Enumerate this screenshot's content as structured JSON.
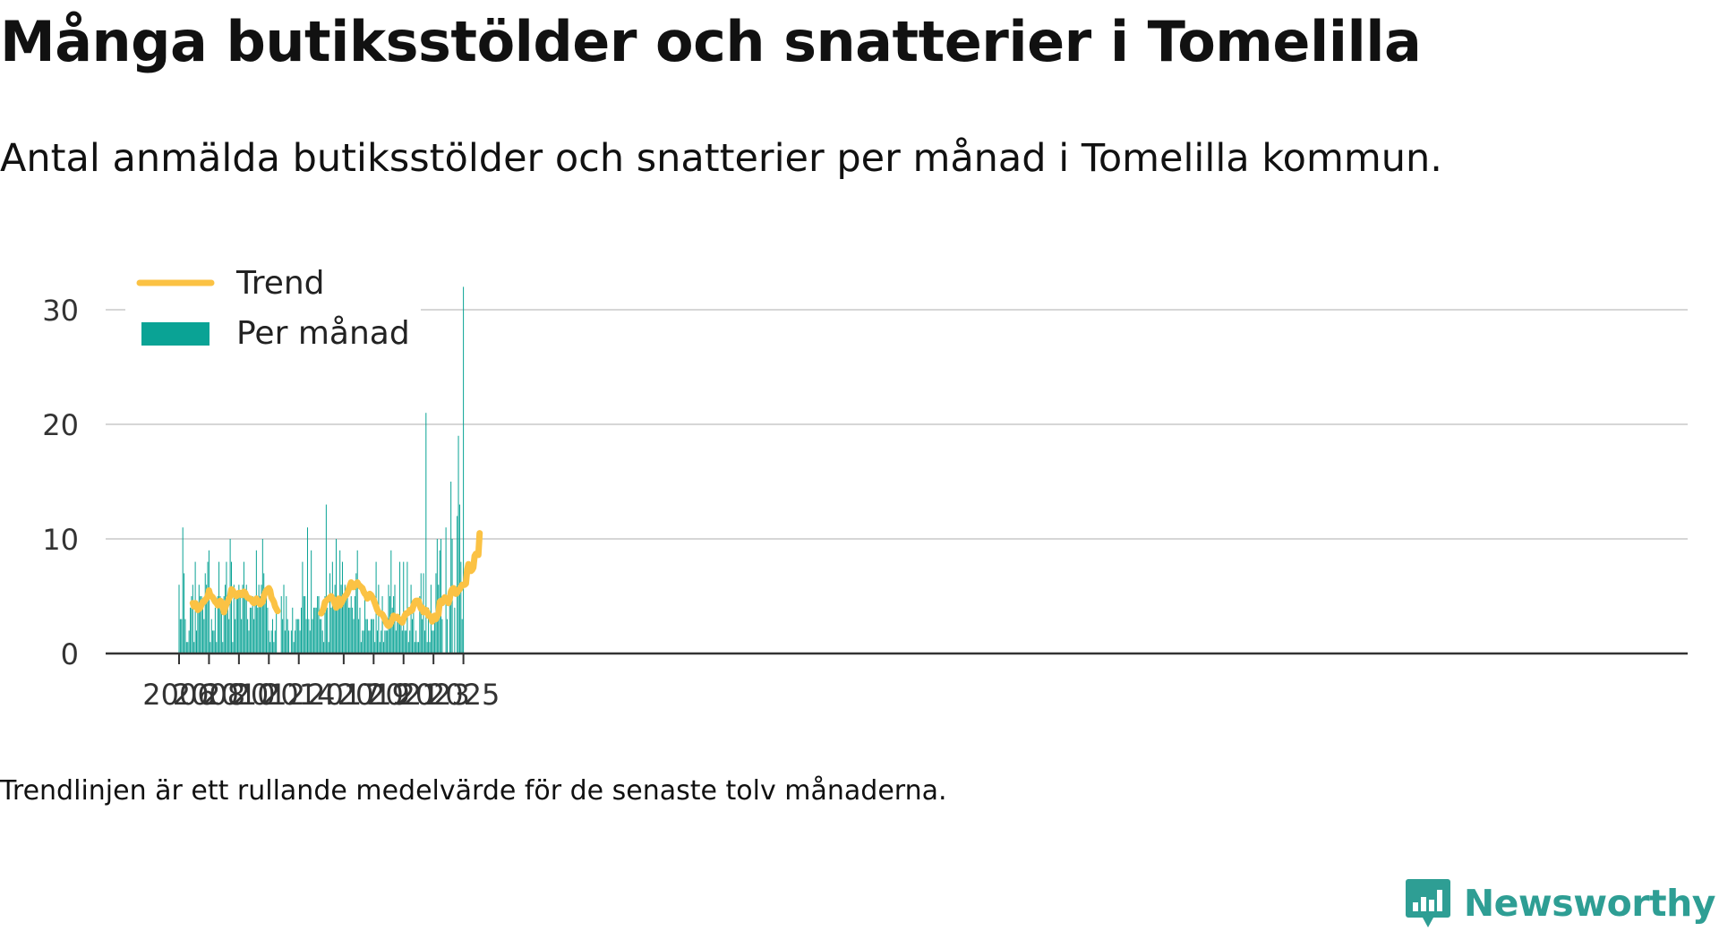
{
  "title": "Många butiksstölder och snatterier i Tomelilla",
  "subtitle": "Antal anmälda butiksstölder och snatterier per månad i Tomelilla kommun.",
  "note": "Trendlinjen är ett rullande medelvärde för de senaste tolv månaderna.",
  "brand": {
    "name": "Newsworthy",
    "icon": "newsworthy-logo-icon",
    "color": "#2e9e94"
  },
  "colors": {
    "bars": "#0aa395",
    "trend": "#fbc244",
    "grid": "#d6d6d6",
    "axis": "#333333"
  },
  "chart_data": {
    "type": "bar",
    "x_axis": "month",
    "start_month": "2006-01",
    "ylim": [
      0,
      32
    ],
    "yticks": [
      0,
      10,
      20,
      30
    ],
    "xticks": [
      "2006",
      "2008",
      "2010",
      "2012",
      "2014",
      "2017",
      "2019",
      "2021",
      "2023",
      "2025"
    ],
    "grid": true,
    "legend": {
      "placement": "top-left",
      "entries": [
        "Trend",
        "Per månad"
      ]
    },
    "series": [
      {
        "name": "Per månad",
        "type": "bar",
        "values": [
          6,
          3,
          3,
          11,
          7,
          3,
          1,
          1,
          2,
          4,
          5,
          6,
          1,
          8,
          2,
          4,
          6,
          5,
          5,
          4,
          3,
          7,
          6,
          8,
          9,
          1,
          3,
          2,
          2,
          4,
          1,
          5,
          8,
          5,
          4,
          1,
          5,
          6,
          8,
          4,
          3,
          10,
          8,
          1,
          6,
          3,
          5,
          5,
          6,
          5,
          3,
          6,
          8,
          5,
          6,
          3,
          2,
          4,
          4,
          5,
          3,
          5,
          9,
          4,
          6,
          5,
          6,
          10,
          7,
          5,
          5,
          4,
          2,
          1,
          2,
          3,
          1,
          2,
          4,
          null,
          null,
          null,
          5,
          3,
          6,
          2,
          5,
          3,
          2,
          null,
          2,
          4,
          1,
          2,
          3,
          3,
          3,
          2,
          4,
          8,
          5,
          5,
          3,
          11,
          3,
          2,
          9,
          3,
          4,
          4,
          4,
          5,
          5,
          3,
          3,
          2,
          1,
          5,
          13,
          4,
          1,
          7,
          4,
          8,
          5,
          6,
          10,
          5,
          5,
          9,
          6,
          8,
          5,
          6,
          5,
          6,
          4,
          4,
          5,
          4,
          3,
          5,
          7,
          9,
          3,
          4,
          1,
          2,
          2,
          5,
          3,
          3,
          2,
          2,
          3,
          3,
          3,
          1,
          8,
          2,
          6,
          1,
          2,
          5,
          1,
          2,
          2,
          2,
          6,
          5,
          9,
          4,
          5,
          6,
          2,
          3,
          3,
          8,
          3,
          2,
          8,
          2,
          2,
          8,
          1,
          2,
          6,
          3,
          4,
          1,
          2,
          1,
          1,
          5,
          7,
          3,
          7,
          2,
          21,
          1,
          4,
          1,
          6,
          2,
          2,
          3,
          7,
          10,
          6,
          9,
          10,
          3,
          null,
          null,
          11,
          3,
          null,
          5,
          15,
          10,
          null,
          4,
          null,
          12,
          19,
          13,
          8,
          3,
          32
        ]
      },
      {
        "name": "Trend",
        "type": "line",
        "values": [
          null,
          null,
          null,
          null,
          null,
          null,
          null,
          null,
          null,
          null,
          null,
          4.4,
          4.1,
          4.4,
          4.2,
          3.8,
          3.9,
          4.0,
          4.3,
          4.5,
          4.5,
          4.7,
          4.8,
          5.0,
          5.5,
          5.1,
          5.0,
          4.9,
          4.7,
          4.5,
          4.4,
          4.2,
          4.3,
          4.6,
          4.5,
          4.1,
          3.6,
          4.0,
          4.3,
          4.5,
          4.8,
          5.0,
          5.6,
          5.5,
          5.3,
          5.1,
          5.0,
          5.2,
          5.3,
          5.3,
          5.1,
          5.2,
          5.4,
          5.3,
          5.0,
          4.9,
          4.8,
          4.8,
          4.7,
          4.5,
          4.4,
          4.6,
          4.8,
          4.6,
          4.4,
          4.3,
          4.4,
          4.5,
          5.0,
          5.3,
          5.5,
          5.6,
          5.7,
          5.5,
          4.9,
          4.7,
          4.5,
          4.1,
          3.9,
          3.7,
          null,
          null,
          null,
          null,
          null,
          null,
          null,
          null,
          null,
          null,
          null,
          null,
          null,
          null,
          null,
          null,
          null,
          null,
          null,
          null,
          null,
          null,
          null,
          null,
          null,
          null,
          null,
          null,
          null,
          null,
          null,
          null,
          null,
          null,
          3.5,
          3.7,
          4.0,
          4.5,
          4.6,
          4.7,
          4.8,
          4.9,
          5.0,
          4.8,
          4.6,
          4.3,
          4.0,
          4.5,
          4.8,
          4.2,
          4.4,
          4.6,
          4.8,
          5.0,
          5.1,
          5.3,
          5.6,
          5.9,
          6.2,
          5.8,
          5.8,
          6.0,
          6.1,
          6.2,
          6.0,
          5.9,
          5.8,
          5.7,
          5.4,
          5.2,
          5.1,
          4.8,
          5.0,
          5.2,
          5.1,
          4.9,
          4.7,
          4.4,
          4.1,
          3.8,
          3.6,
          3.5,
          3.5,
          3.4,
          3.2,
          3.0,
          2.7,
          2.5,
          2.4,
          2.5,
          2.7,
          3.0,
          3.3,
          3.1,
          3.1,
          3.2,
          3.0,
          2.9,
          2.8,
          2.7,
          3.0,
          3.3,
          3.5,
          3.5,
          3.6,
          3.8,
          3.7,
          3.8,
          4.2,
          4.5,
          4.6,
          4.6,
          4.6,
          4.2,
          3.9,
          4.0,
          3.6,
          3.7,
          3.8,
          3.6,
          3.3,
          3.3,
          3.2,
          2.8,
          3.1,
          3.3,
          3.0,
          3.3,
          3.4,
          4.5,
          4.6,
          4.4,
          4.7,
          4.9,
          4.8,
          4.7,
          4.4,
          4.8,
          5.4,
          5.6,
          5.7,
          5.6,
          5.2,
          5.3,
          5.5,
          5.6,
          5.8,
          6.0,
          6.0,
          6.0,
          6.1,
          7.3,
          7.8,
          7.5,
          7.2,
          7.3,
          7.5,
          8.5,
          8.7,
          8.6,
          8.6,
          10.5
        ]
      }
    ]
  }
}
